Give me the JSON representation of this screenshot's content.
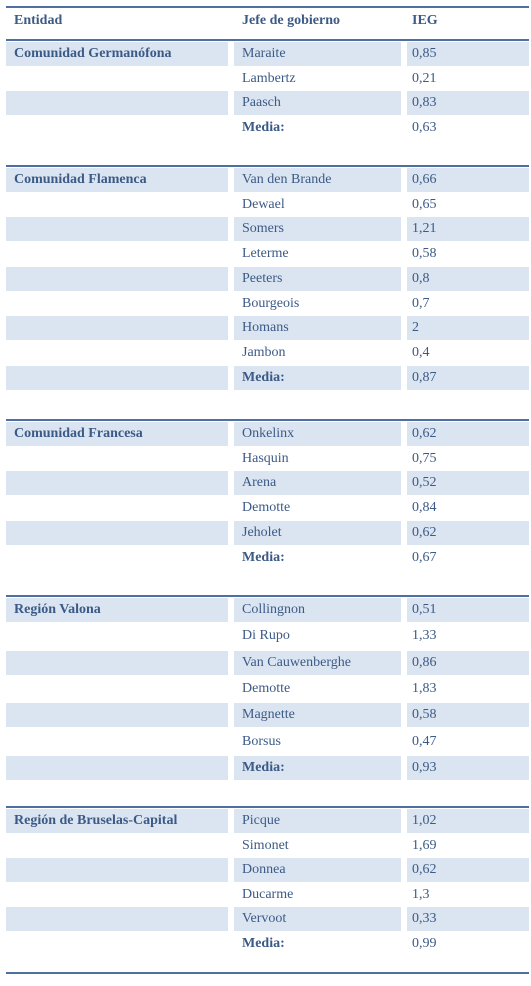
{
  "headers": {
    "entity": "Entidad",
    "head": "Jefe de gobierno",
    "ieg": "IEG"
  },
  "sections": [
    {
      "entity": "Comunidad Germanófona",
      "rows": [
        {
          "name": "Maraite",
          "value": "0,85"
        },
        {
          "name": "Lambertz",
          "value": "0,21"
        },
        {
          "name": "Paasch",
          "value": "0,83"
        },
        {
          "name": "Media:",
          "value": "0,63",
          "is_mean": true
        }
      ]
    },
    {
      "entity": "Comunidad Flamenca",
      "rows": [
        {
          "name": "Van den Brande",
          "value": "0,66"
        },
        {
          "name": "Dewael",
          "value": "0,65"
        },
        {
          "name": "Somers",
          "value": "1,21"
        },
        {
          "name": "Leterme",
          "value": "0,58"
        },
        {
          "name": "Peeters",
          "value": "0,8"
        },
        {
          "name": "Bourgeois",
          "value": "0,7"
        },
        {
          "name": "Homans",
          "value": "2"
        },
        {
          "name": "Jambon",
          "value": "0,4"
        },
        {
          "name": "Media:",
          "value": "0,87",
          "is_mean": true
        }
      ]
    },
    {
      "entity": "Comunidad Francesa",
      "rows": [
        {
          "name": "Onkelinx",
          "value": "0,62"
        },
        {
          "name": "Hasquin",
          "value": "0,75"
        },
        {
          "name": "Arena",
          "value": "0,52"
        },
        {
          "name": "Demotte",
          "value": "0,84"
        },
        {
          "name": "Jeholet",
          "value": "0,62"
        },
        {
          "name": "Media:",
          "value": "0,67",
          "is_mean": true
        }
      ]
    },
    {
      "entity": "Región Valona",
      "rows": [
        {
          "name": "Collingnon",
          "value": "0,51"
        },
        {
          "name": "Di Rupo",
          "value": "1,33"
        },
        {
          "name": "Van Cauwenberghe",
          "value": "0,86"
        },
        {
          "name": "Demotte",
          "value": "1,83"
        },
        {
          "name": "Magnette",
          "value": "0,58"
        },
        {
          "name": "Borsus",
          "value": "0,47"
        },
        {
          "name": "Media:",
          "value": "0,93",
          "is_mean": true
        }
      ]
    },
    {
      "entity": "Región de Bruselas-Capital",
      "rows": [
        {
          "name": "Picque",
          "value": "1,02"
        },
        {
          "name": "Simonet",
          "value": "1,69"
        },
        {
          "name": "Donnea",
          "value": "0,62"
        },
        {
          "name": "Ducarme",
          "value": "1,3"
        },
        {
          "name": "Vervoot",
          "value": "0,33"
        },
        {
          "name": "Media:",
          "value": "0,99",
          "is_mean": true
        }
      ]
    }
  ],
  "colors": {
    "text": "#3c5a86",
    "rule": "#4f6fa0",
    "shade": "#dbe5f1"
  }
}
